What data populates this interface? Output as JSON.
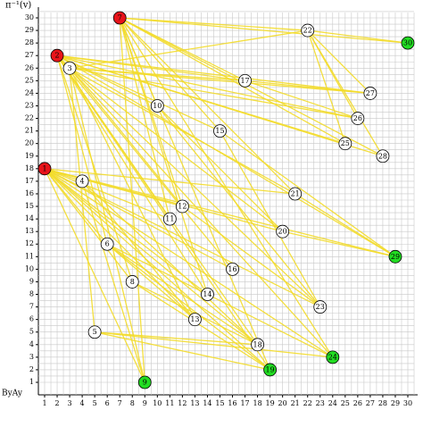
{
  "y_axis_label": "π⁻¹(v)",
  "corner_label": "ByAy",
  "x_ticks": [
    1,
    2,
    3,
    4,
    5,
    6,
    7,
    8,
    9,
    10,
    11,
    12,
    13,
    14,
    15,
    16,
    17,
    18,
    19,
    20,
    21,
    22,
    23,
    24,
    25,
    26,
    27,
    28,
    29,
    30
  ],
  "y_ticks": [
    1,
    2,
    3,
    4,
    5,
    6,
    7,
    8,
    9,
    10,
    11,
    12,
    13,
    14,
    15,
    16,
    17,
    18,
    19,
    20,
    21,
    22,
    23,
    24,
    25,
    26,
    27,
    28,
    29,
    30
  ],
  "nodes": [
    {
      "label": "1",
      "x": 1,
      "y": 18,
      "color": "#e8141a"
    },
    {
      "label": "2",
      "x": 2,
      "y": 27,
      "color": "#e8141a"
    },
    {
      "label": "3",
      "x": 3,
      "y": 26,
      "color": "#ffffff"
    },
    {
      "label": "4",
      "x": 4,
      "y": 17,
      "color": "#ffffff"
    },
    {
      "label": "5",
      "x": 5,
      "y": 5,
      "color": "#ffffff"
    },
    {
      "label": "6",
      "x": 6,
      "y": 12,
      "color": "#ffffff"
    },
    {
      "label": "7",
      "x": 7,
      "y": 30,
      "color": "#e8141a"
    },
    {
      "label": "8",
      "x": 8,
      "y": 9,
      "color": "#ffffff"
    },
    {
      "label": "9",
      "x": 9,
      "y": 1,
      "color": "#22dd22"
    },
    {
      "label": "10",
      "x": 10,
      "y": 23,
      "color": "#ffffff"
    },
    {
      "label": "11",
      "x": 11,
      "y": 14,
      "color": "#ffffff"
    },
    {
      "label": "12",
      "x": 12,
      "y": 15,
      "color": "#ffffff"
    },
    {
      "label": "13",
      "x": 13,
      "y": 6,
      "color": "#ffffff"
    },
    {
      "label": "14",
      "x": 14,
      "y": 8,
      "color": "#ffffff"
    },
    {
      "label": "15",
      "x": 15,
      "y": 21,
      "color": "#ffffff"
    },
    {
      "label": "16",
      "x": 16,
      "y": 10,
      "color": "#ffffff"
    },
    {
      "label": "17",
      "x": 17,
      "y": 25,
      "color": "#ffffff"
    },
    {
      "label": "18",
      "x": 18,
      "y": 4,
      "color": "#ffffff"
    },
    {
      "label": "19",
      "x": 19,
      "y": 2,
      "color": "#22dd22"
    },
    {
      "label": "20",
      "x": 20,
      "y": 13,
      "color": "#ffffff"
    },
    {
      "label": "21",
      "x": 21,
      "y": 16,
      "color": "#ffffff"
    },
    {
      "label": "22",
      "x": 22,
      "y": 29,
      "color": "#ffffff"
    },
    {
      "label": "23",
      "x": 23,
      "y": 7,
      "color": "#ffffff"
    },
    {
      "label": "24",
      "x": 24,
      "y": 3,
      "color": "#22dd22"
    },
    {
      "label": "25",
      "x": 25,
      "y": 20,
      "color": "#ffffff"
    },
    {
      "label": "26",
      "x": 26,
      "y": 22,
      "color": "#ffffff"
    },
    {
      "label": "27",
      "x": 27,
      "y": 24,
      "color": "#ffffff"
    },
    {
      "label": "28",
      "x": 28,
      "y": 19,
      "color": "#ffffff"
    },
    {
      "label": "29",
      "x": 29,
      "y": 11,
      "color": "#22dd22"
    },
    {
      "label": "30",
      "x": 30,
      "y": 28,
      "color": "#22dd22"
    }
  ],
  "edges": [
    [
      1,
      4
    ],
    [
      1,
      6
    ],
    [
      1,
      8
    ],
    [
      1,
      9
    ],
    [
      1,
      11
    ],
    [
      1,
      12
    ],
    [
      1,
      13
    ],
    [
      1,
      14
    ],
    [
      1,
      16
    ],
    [
      1,
      18
    ],
    [
      1,
      19
    ],
    [
      1,
      20
    ],
    [
      1,
      21
    ],
    [
      1,
      23
    ],
    [
      1,
      24
    ],
    [
      1,
      29
    ],
    [
      2,
      3
    ],
    [
      2,
      6
    ],
    [
      2,
      8
    ],
    [
      2,
      10
    ],
    [
      2,
      11
    ],
    [
      2,
      14
    ],
    [
      2,
      15
    ],
    [
      2,
      16
    ],
    [
      2,
      17
    ],
    [
      2,
      18
    ],
    [
      2,
      19
    ],
    [
      2,
      23
    ],
    [
      2,
      25
    ],
    [
      2,
      26
    ],
    [
      2,
      27
    ],
    [
      2,
      28
    ],
    [
      2,
      29
    ],
    [
      3,
      5
    ],
    [
      3,
      9
    ],
    [
      3,
      12
    ],
    [
      3,
      13
    ],
    [
      3,
      17
    ],
    [
      3,
      20
    ],
    [
      3,
      21
    ],
    [
      3,
      22
    ],
    [
      3,
      24
    ],
    [
      3,
      26
    ],
    [
      3,
      27
    ],
    [
      7,
      9
    ],
    [
      7,
      10
    ],
    [
      7,
      11
    ],
    [
      7,
      12
    ],
    [
      7,
      14
    ],
    [
      7,
      15
    ],
    [
      7,
      17
    ],
    [
      7,
      19
    ],
    [
      7,
      21
    ],
    [
      7,
      22
    ],
    [
      7,
      24
    ],
    [
      7,
      25
    ],
    [
      7,
      28
    ],
    [
      7,
      30
    ],
    [
      4,
      9
    ],
    [
      4,
      13
    ],
    [
      4,
      18
    ],
    [
      5,
      18
    ],
    [
      5,
      19
    ],
    [
      5,
      24
    ],
    [
      6,
      13
    ],
    [
      6,
      18
    ],
    [
      6,
      19
    ],
    [
      6,
      24
    ],
    [
      8,
      18
    ],
    [
      8,
      19
    ],
    [
      22,
      25
    ],
    [
      22,
      26
    ],
    [
      22,
      27
    ],
    [
      22,
      28
    ],
    [
      22,
      30
    ],
    [
      17,
      27
    ],
    [
      17,
      26
    ],
    [
      10,
      20
    ],
    [
      10,
      23
    ],
    [
      15,
      23
    ],
    [
      15,
      29
    ],
    [
      12,
      23
    ],
    [
      20,
      29
    ],
    [
      21,
      29
    ]
  ]
}
